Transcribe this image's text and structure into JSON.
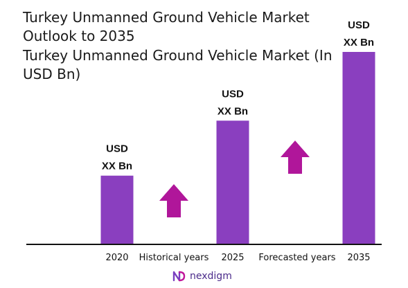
{
  "title": "Turkey Unmanned Ground Vehicle Market Outlook to 2035",
  "subtitle": "Turkey Unmanned Ground Vehicle Market (In USD Bn)",
  "chart_data": {
    "type": "bar",
    "categories": [
      "2020",
      "2025",
      "2035"
    ],
    "values": [
      1.0,
      1.8,
      2.8
    ],
    "data_labels": [
      [
        "USD",
        "XX Bn"
      ],
      [
        "USD",
        "XX Bn"
      ],
      [
        "USD",
        "XX Bn"
      ]
    ],
    "annotations": [
      "Historical years",
      "Forecasted years"
    ],
    "bar_color": "#8a3fbf",
    "arrow_color": "#b0169a",
    "grid": false,
    "legend": "none"
  },
  "logo": {
    "text": "nexdigm",
    "color": "#4a2a8a"
  }
}
